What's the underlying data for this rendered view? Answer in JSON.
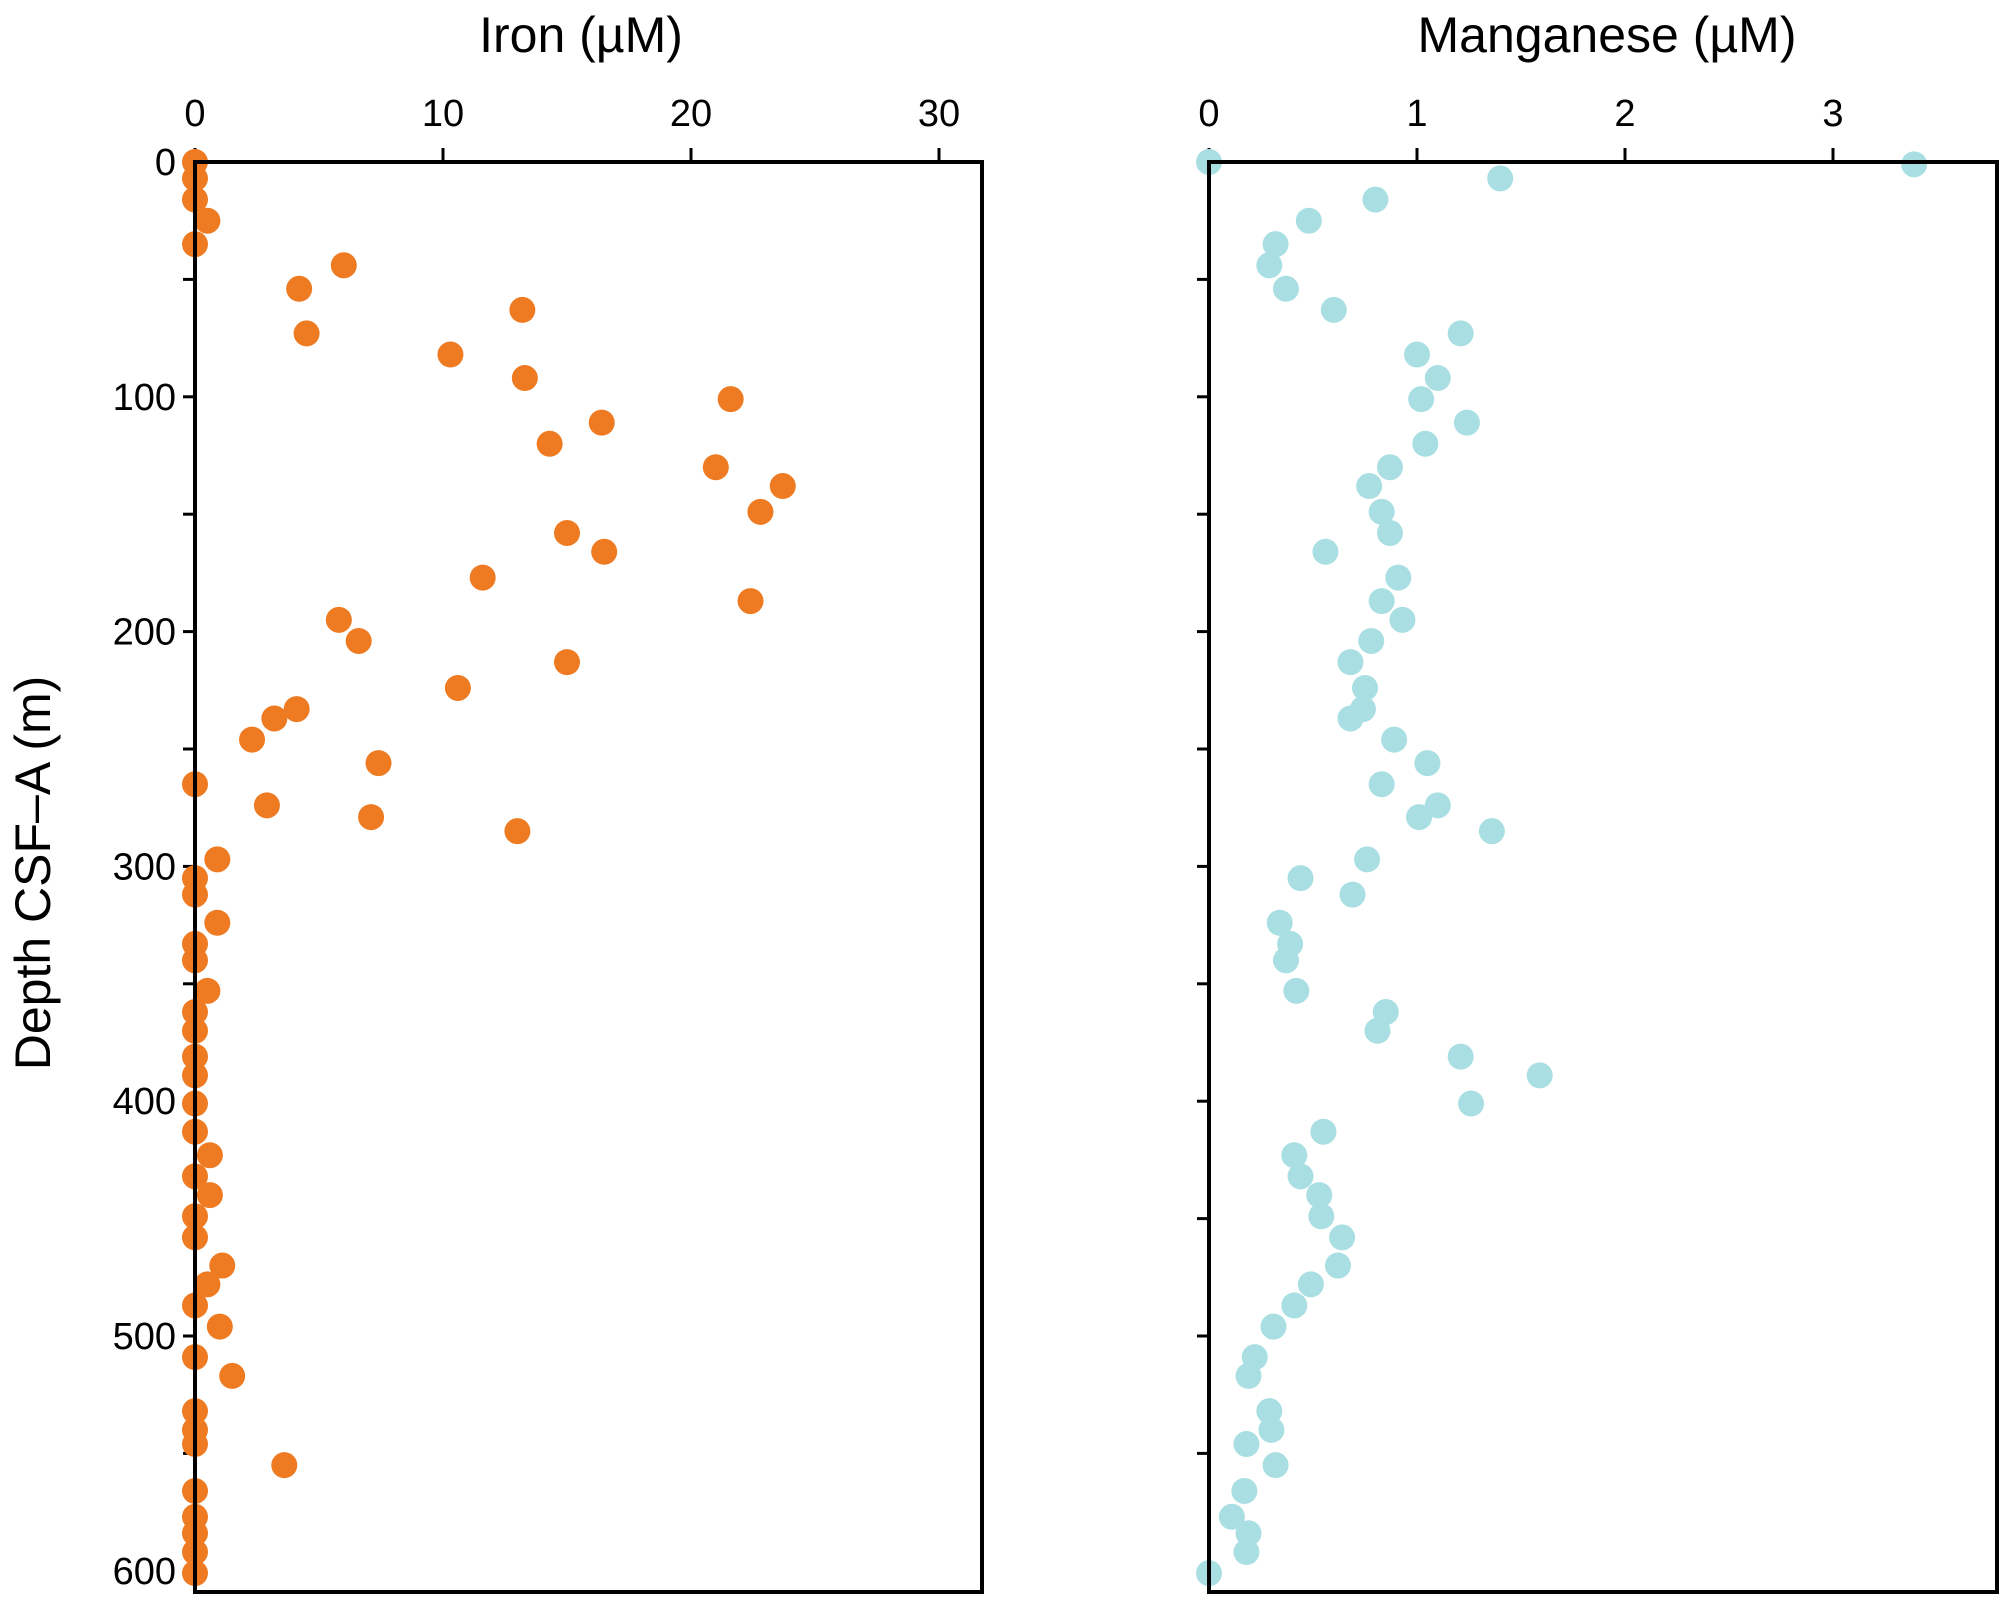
{
  "chart_data": [
    {
      "type": "scatter",
      "title": "Iron (µM)",
      "xlabel": "Iron (µM)",
      "ylabel": "Depth CSF–A (m)",
      "xlim": [
        0,
        32
      ],
      "ylim": [
        600,
        0
      ],
      "x_ticks": [
        0,
        10,
        20,
        30
      ],
      "y_ticks": [
        0,
        100,
        200,
        300,
        400,
        500,
        600
      ],
      "x_axis_position": "top",
      "y_axis_inverted": true,
      "grid": false,
      "color": "#ee7b22",
      "series": [
        {
          "points": [
            {
              "x": 0.0,
              "y": 0
            },
            {
              "x": 0.0,
              "y": 7
            },
            {
              "x": 0.0,
              "y": 16
            },
            {
              "x": 0.5,
              "y": 25
            },
            {
              "x": 0.0,
              "y": 35
            },
            {
              "x": 6.0,
              "y": 44
            },
            {
              "x": 4.2,
              "y": 54
            },
            {
              "x": 13.2,
              "y": 63
            },
            {
              "x": 4.5,
              "y": 73
            },
            {
              "x": 10.3,
              "y": 82
            },
            {
              "x": 13.3,
              "y": 92
            },
            {
              "x": 21.6,
              "y": 101
            },
            {
              "x": 16.4,
              "y": 111
            },
            {
              "x": 14.3,
              "y": 120
            },
            {
              "x": 21.0,
              "y": 130
            },
            {
              "x": 23.7,
              "y": 138
            },
            {
              "x": 22.8,
              "y": 149
            },
            {
              "x": 15.0,
              "y": 158
            },
            {
              "x": 16.5,
              "y": 166
            },
            {
              "x": 11.6,
              "y": 177
            },
            {
              "x": 22.4,
              "y": 187
            },
            {
              "x": 5.8,
              "y": 195
            },
            {
              "x": 6.6,
              "y": 204
            },
            {
              "x": 15.0,
              "y": 213
            },
            {
              "x": 10.6,
              "y": 224
            },
            {
              "x": 4.1,
              "y": 233
            },
            {
              "x": 3.2,
              "y": 237
            },
            {
              "x": 2.3,
              "y": 246
            },
            {
              "x": 7.4,
              "y": 256
            },
            {
              "x": 0.0,
              "y": 265
            },
            {
              "x": 2.9,
              "y": 274
            },
            {
              "x": 7.1,
              "y": 279
            },
            {
              "x": 13.0,
              "y": 285
            },
            {
              "x": 0.9,
              "y": 297
            },
            {
              "x": 0.0,
              "y": 305
            },
            {
              "x": 0.0,
              "y": 312
            },
            {
              "x": 0.9,
              "y": 324
            },
            {
              "x": 0.0,
              "y": 333
            },
            {
              "x": 0.0,
              "y": 340
            },
            {
              "x": 0.5,
              "y": 353
            },
            {
              "x": 0.0,
              "y": 362
            },
            {
              "x": 0.0,
              "y": 370
            },
            {
              "x": 0.0,
              "y": 381
            },
            {
              "x": 0.0,
              "y": 389
            },
            {
              "x": 0.0,
              "y": 401
            },
            {
              "x": 0.0,
              "y": 413
            },
            {
              "x": 0.6,
              "y": 423
            },
            {
              "x": 0.0,
              "y": 432
            },
            {
              "x": 0.6,
              "y": 440
            },
            {
              "x": 0.0,
              "y": 449
            },
            {
              "x": 0.0,
              "y": 458
            },
            {
              "x": 1.1,
              "y": 470
            },
            {
              "x": 0.5,
              "y": 478
            },
            {
              "x": 0.0,
              "y": 487
            },
            {
              "x": 1.0,
              "y": 496
            },
            {
              "x": 0.0,
              "y": 509
            },
            {
              "x": 1.5,
              "y": 517
            },
            {
              "x": 0.0,
              "y": 532
            },
            {
              "x": 0.0,
              "y": 540
            },
            {
              "x": 0.0,
              "y": 546
            },
            {
              "x": 3.6,
              "y": 555
            },
            {
              "x": 0.0,
              "y": 566
            },
            {
              "x": 0.0,
              "y": 577
            },
            {
              "x": 0.0,
              "y": 584
            },
            {
              "x": 0.0,
              "y": 592
            },
            {
              "x": 0.0,
              "y": 601
            }
          ]
        }
      ]
    },
    {
      "type": "scatter",
      "title": "Manganese (µM)",
      "xlabel": "Manganese (µM)",
      "ylabel": "",
      "xlim": [
        0,
        3.8
      ],
      "ylim": [
        600,
        0
      ],
      "x_ticks": [
        0,
        1,
        2,
        3
      ],
      "y_ticks": [
        0,
        100,
        200,
        300,
        400,
        500,
        600
      ],
      "x_axis_position": "top",
      "y_axis_inverted": true,
      "y_tick_labels_visible": false,
      "grid": false,
      "color": "#a9dfe2",
      "series": [
        {
          "points": [
            {
              "x": 0.0,
              "y": 0
            },
            {
              "x": 3.39,
              "y": 1
            },
            {
              "x": 1.4,
              "y": 7
            },
            {
              "x": 0.8,
              "y": 16
            },
            {
              "x": 0.48,
              "y": 25
            },
            {
              "x": 0.32,
              "y": 35
            },
            {
              "x": 0.29,
              "y": 44
            },
            {
              "x": 0.37,
              "y": 54
            },
            {
              "x": 0.6,
              "y": 63
            },
            {
              "x": 1.21,
              "y": 73
            },
            {
              "x": 1.0,
              "y": 82
            },
            {
              "x": 1.1,
              "y": 92
            },
            {
              "x": 1.02,
              "y": 101
            },
            {
              "x": 1.24,
              "y": 111
            },
            {
              "x": 1.04,
              "y": 120
            },
            {
              "x": 0.87,
              "y": 130
            },
            {
              "x": 0.77,
              "y": 138
            },
            {
              "x": 0.83,
              "y": 149
            },
            {
              "x": 0.87,
              "y": 158
            },
            {
              "x": 0.56,
              "y": 166
            },
            {
              "x": 0.91,
              "y": 177
            },
            {
              "x": 0.83,
              "y": 187
            },
            {
              "x": 0.93,
              "y": 195
            },
            {
              "x": 0.78,
              "y": 204
            },
            {
              "x": 0.68,
              "y": 213
            },
            {
              "x": 0.75,
              "y": 224
            },
            {
              "x": 0.74,
              "y": 233
            },
            {
              "x": 0.68,
              "y": 237
            },
            {
              "x": 0.89,
              "y": 246
            },
            {
              "x": 1.05,
              "y": 256
            },
            {
              "x": 0.83,
              "y": 265
            },
            {
              "x": 1.1,
              "y": 274
            },
            {
              "x": 1.01,
              "y": 279
            },
            {
              "x": 1.36,
              "y": 285
            },
            {
              "x": 0.76,
              "y": 297
            },
            {
              "x": 0.44,
              "y": 305
            },
            {
              "x": 0.69,
              "y": 312
            },
            {
              "x": 0.34,
              "y": 324
            },
            {
              "x": 0.39,
              "y": 333
            },
            {
              "x": 0.37,
              "y": 340
            },
            {
              "x": 0.42,
              "y": 353
            },
            {
              "x": 0.85,
              "y": 362
            },
            {
              "x": 0.81,
              "y": 370
            },
            {
              "x": 1.21,
              "y": 381
            },
            {
              "x": 1.59,
              "y": 389
            },
            {
              "x": 1.26,
              "y": 401
            },
            {
              "x": 0.55,
              "y": 413
            },
            {
              "x": 0.41,
              "y": 423
            },
            {
              "x": 0.44,
              "y": 432
            },
            {
              "x": 0.53,
              "y": 440
            },
            {
              "x": 0.54,
              "y": 449
            },
            {
              "x": 0.64,
              "y": 458
            },
            {
              "x": 0.62,
              "y": 470
            },
            {
              "x": 0.49,
              "y": 478
            },
            {
              "x": 0.41,
              "y": 487
            },
            {
              "x": 0.31,
              "y": 496
            },
            {
              "x": 0.22,
              "y": 509
            },
            {
              "x": 0.19,
              "y": 517
            },
            {
              "x": 0.29,
              "y": 532
            },
            {
              "x": 0.3,
              "y": 540
            },
            {
              "x": 0.18,
              "y": 546
            },
            {
              "x": 0.32,
              "y": 555
            },
            {
              "x": 0.17,
              "y": 566
            },
            {
              "x": 0.11,
              "y": 577
            },
            {
              "x": 0.19,
              "y": 584
            },
            {
              "x": 0.18,
              "y": 592
            },
            {
              "x": 0.0,
              "y": 601
            }
          ]
        }
      ]
    }
  ]
}
